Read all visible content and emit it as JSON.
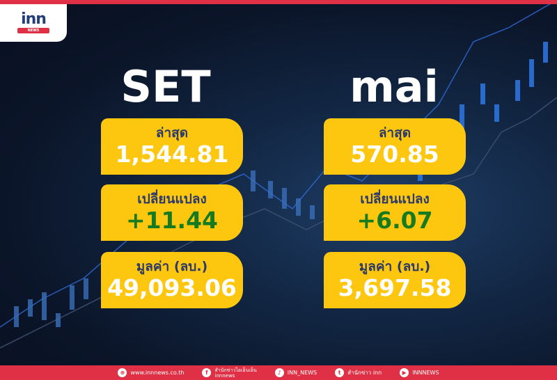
{
  "logo": {
    "text": "inn",
    "sub": "NEWS"
  },
  "panels": [
    {
      "title": "SET",
      "last_label": "ล่าสุด",
      "last": "1,544.81",
      "change_label": "เปลี่ยนแปลง",
      "change": "+11.44",
      "value_label": "มูลค่า (ลบ.)",
      "value": "49,093.06"
    },
    {
      "title": "mai",
      "last_label": "ล่าสุด",
      "last": "570.85",
      "change_label": "เปลี่ยนแปลง",
      "change": "+6.07",
      "value_label": "มูลค่า (ลบ.)",
      "value": "3,697.58"
    }
  ],
  "footer": [
    {
      "icon": "globe-icon",
      "glyph": "⊕",
      "text": "www.innnews.co.th"
    },
    {
      "icon": "facebook-icon",
      "glyph": "f",
      "text": "สำนักข่าวไอเอ็นเอ็น",
      "text2": "innnews"
    },
    {
      "icon": "tiktok-icon",
      "glyph": "♪",
      "text": "INN_NEWS"
    },
    {
      "icon": "twitter-icon",
      "glyph": "t",
      "text": "สำนักข่าว inn"
    },
    {
      "icon": "youtube-icon",
      "glyph": "▶",
      "text": "INNNEWS"
    }
  ],
  "colors": {
    "card": "#fdc70f",
    "accent": "#e03045",
    "positive": "#167a20"
  }
}
